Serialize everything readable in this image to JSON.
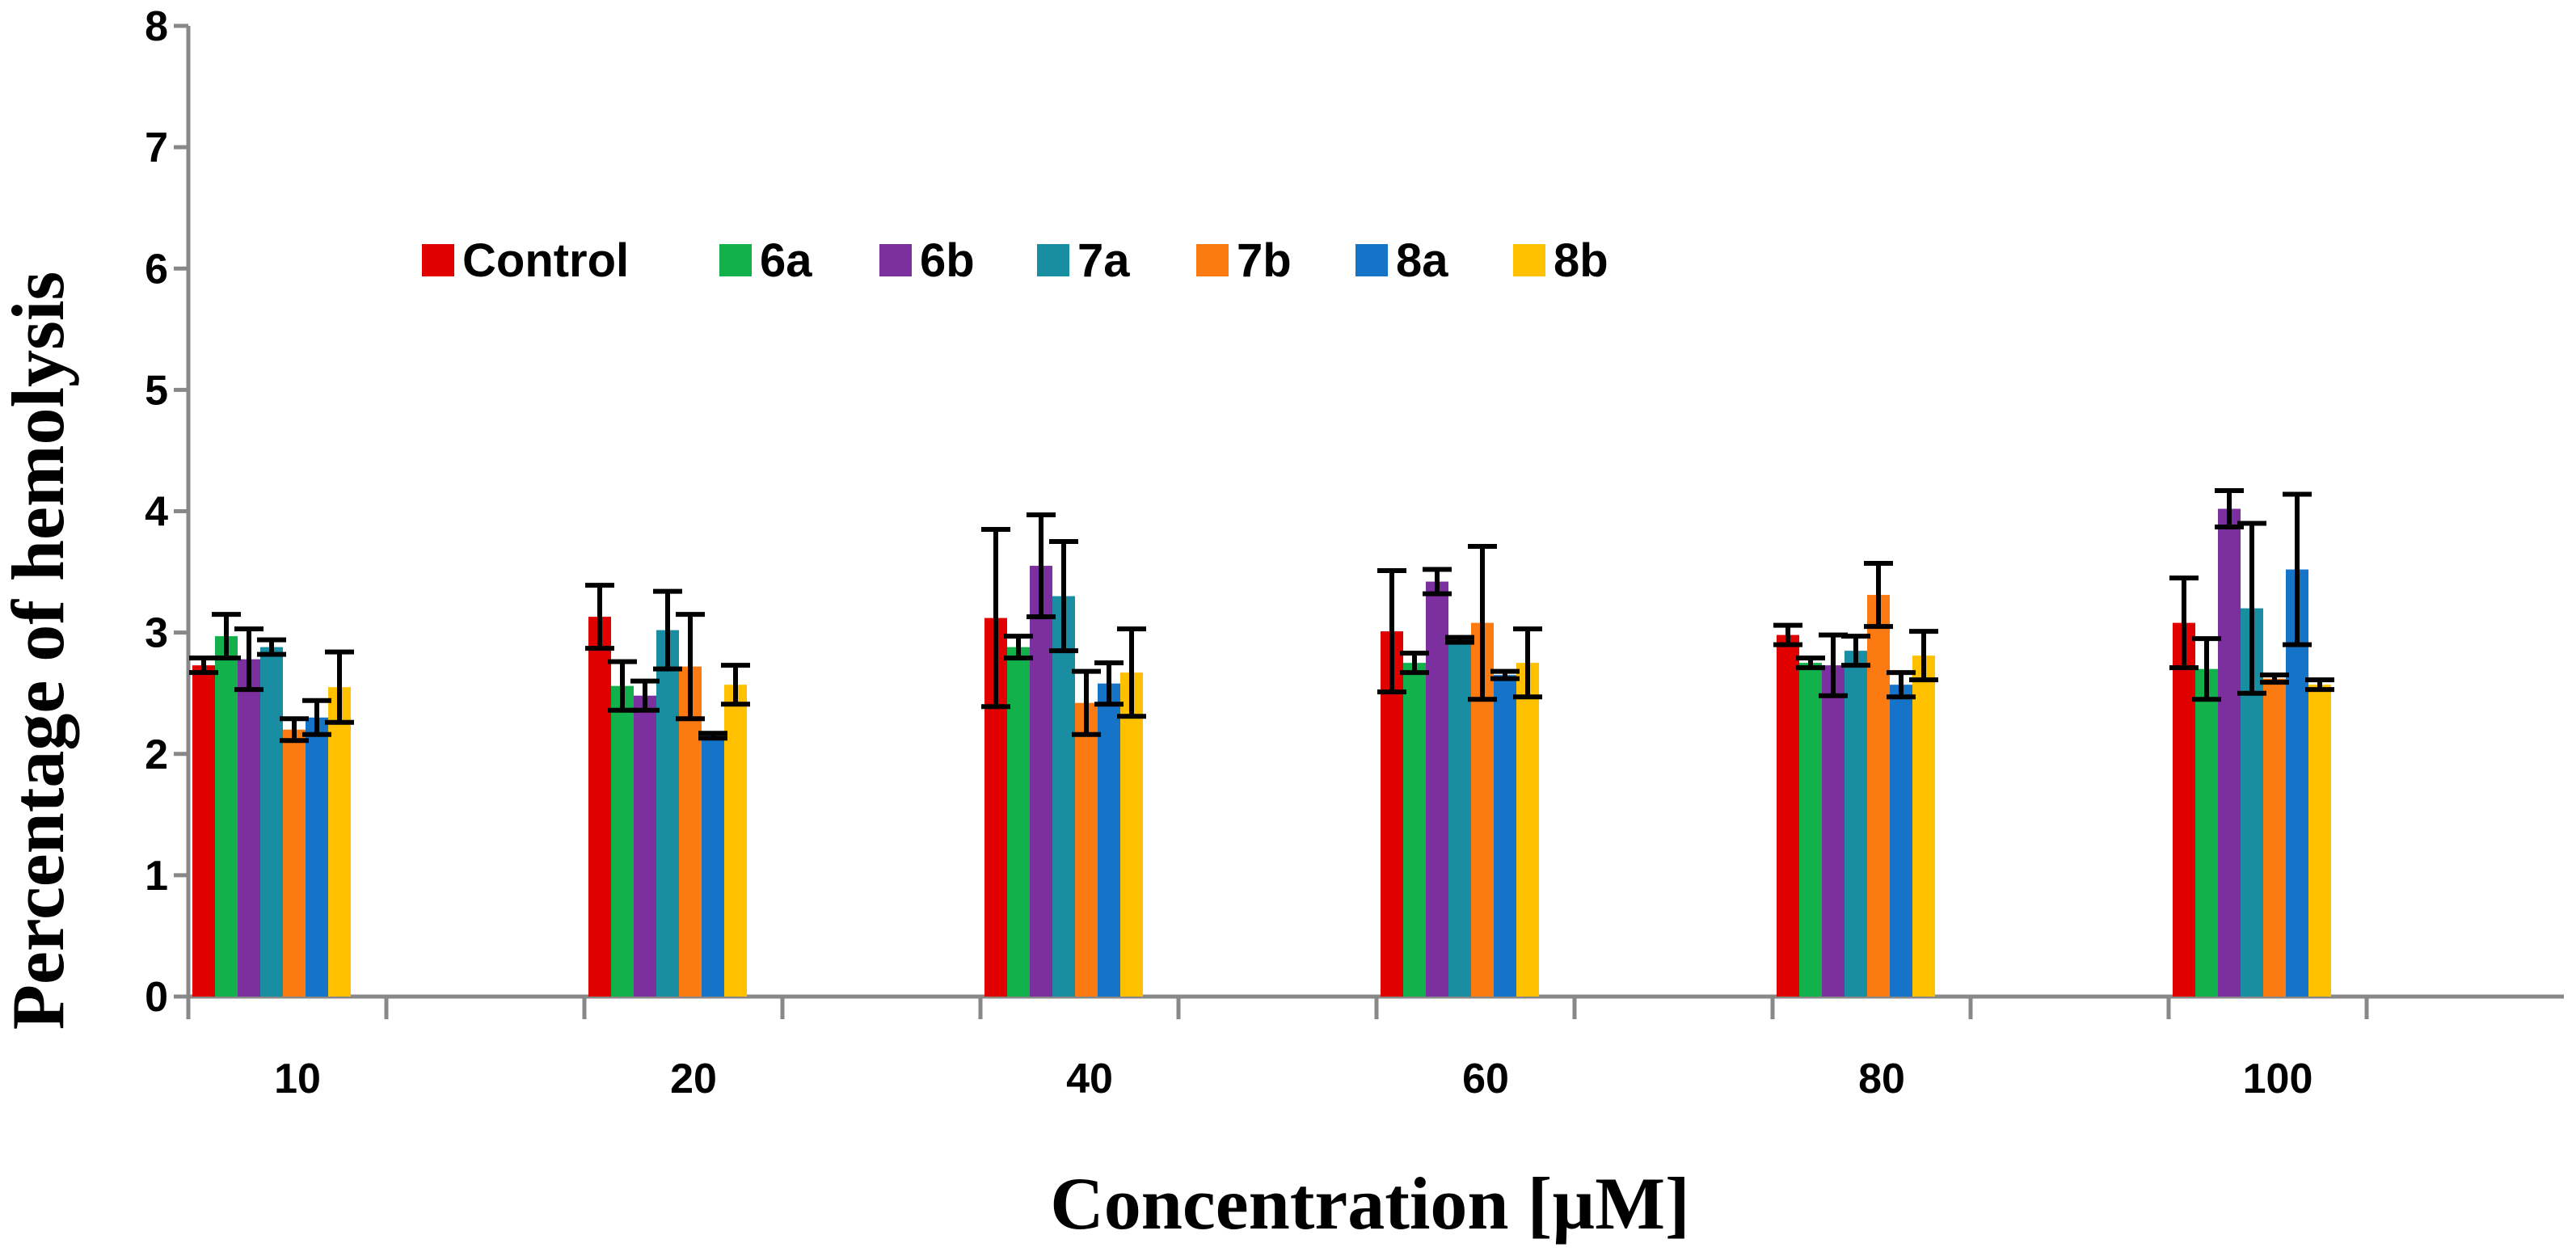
{
  "chart_data": {
    "type": "bar",
    "title": "",
    "xlabel": "Concentration [µM]",
    "ylabel": "Percentage of hemolysis",
    "ylim": [
      0,
      8
    ],
    "yticks": [
      0,
      1,
      2,
      3,
      4,
      5,
      6,
      7,
      8
    ],
    "grid": false,
    "legend_position": "top-left",
    "categories": [
      "10",
      "20",
      "40",
      "60",
      "80",
      "100"
    ],
    "series": [
      {
        "name": "Control",
        "color": "#e00000",
        "values": [
          2.73,
          3.13,
          3.12,
          3.01,
          2.98,
          3.08
        ],
        "errors": [
          0.06,
          0.26,
          0.73,
          0.5,
          0.08,
          0.37
        ]
      },
      {
        "name": "6a",
        "color": "#12b14c",
        "values": [
          2.97,
          2.56,
          2.88,
          2.75,
          2.75,
          2.7
        ],
        "errors": [
          0.18,
          0.2,
          0.09,
          0.08,
          0.04,
          0.25
        ]
      },
      {
        "name": "6b",
        "color": "#7c30a0",
        "values": [
          2.78,
          2.48,
          3.55,
          3.42,
          2.73,
          4.02
        ],
        "errors": [
          0.25,
          0.12,
          0.42,
          0.1,
          0.25,
          0.15
        ]
      },
      {
        "name": "7a",
        "color": "#198ea3",
        "values": [
          2.88,
          3.02,
          3.3,
          2.94,
          2.85,
          3.2
        ],
        "errors": [
          0.06,
          0.32,
          0.45,
          0.02,
          0.12,
          0.7
        ]
      },
      {
        "name": "7b",
        "color": "#fb7b12",
        "values": [
          2.2,
          2.72,
          2.42,
          3.08,
          3.31,
          2.62
        ],
        "errors": [
          0.09,
          0.43,
          0.26,
          0.63,
          0.26,
          0.03
        ]
      },
      {
        "name": "8a",
        "color": "#1674c8",
        "values": [
          2.3,
          2.15,
          2.58,
          2.65,
          2.57,
          3.52
        ],
        "errors": [
          0.14,
          0.02,
          0.17,
          0.03,
          0.1,
          0.62
        ]
      },
      {
        "name": "8b",
        "color": "#ffc000",
        "values": [
          2.55,
          2.57,
          2.67,
          2.75,
          2.81,
          2.57
        ],
        "errors": [
          0.29,
          0.16,
          0.36,
          0.28,
          0.2,
          0.04
        ]
      }
    ]
  }
}
